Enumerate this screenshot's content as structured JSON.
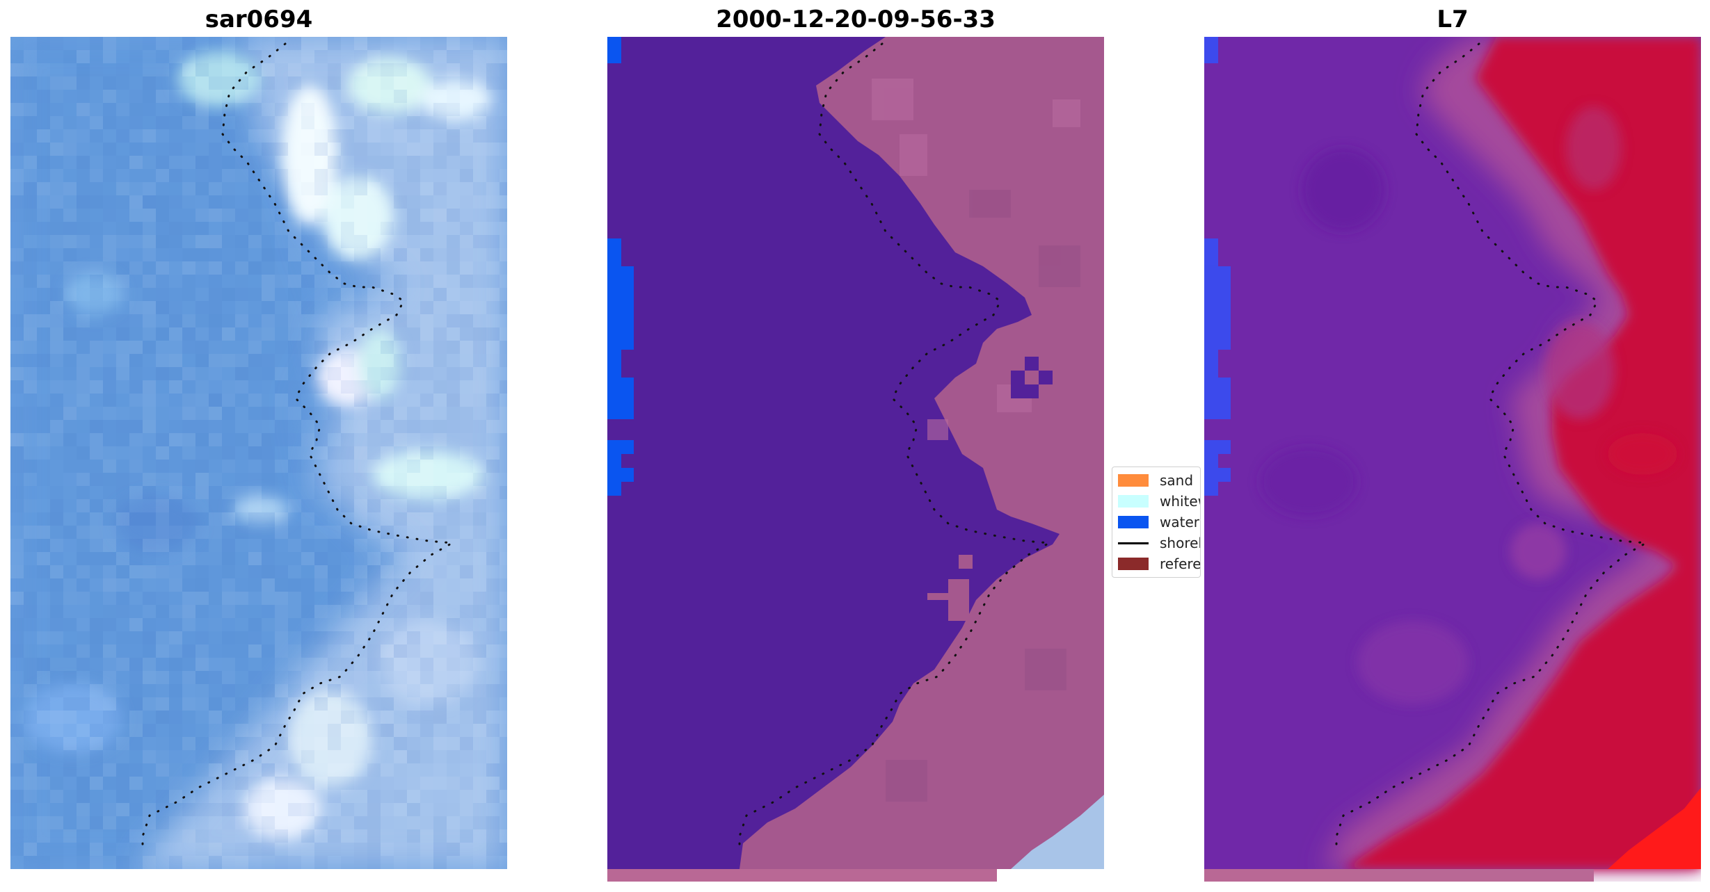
{
  "panels": [
    {
      "title": "sar0694"
    },
    {
      "title": "2000-12-20-09-56-33"
    },
    {
      "title": "L7"
    }
  ],
  "legend": {
    "items": [
      {
        "label": "sand",
        "color": "#ff8c3c",
        "kind": "patch"
      },
      {
        "label": "whitewater",
        "color": "#c8ffff",
        "kind": "patch"
      },
      {
        "label": "water",
        "color": "#0a55f0",
        "kind": "patch"
      },
      {
        "label": "shoreline",
        "color": "#000000",
        "kind": "line"
      },
      {
        "label": "reference",
        "color": "#8b2a2a",
        "kind": "patch"
      }
    ]
  },
  "colors": {
    "water_class": "#53219a",
    "land_overlay": "#a5588e",
    "sar_water": "#6a9fe0",
    "sar_surf": "#e6f2ff",
    "l7_water": "#7028a8",
    "l7_land": "#c9103e"
  }
}
